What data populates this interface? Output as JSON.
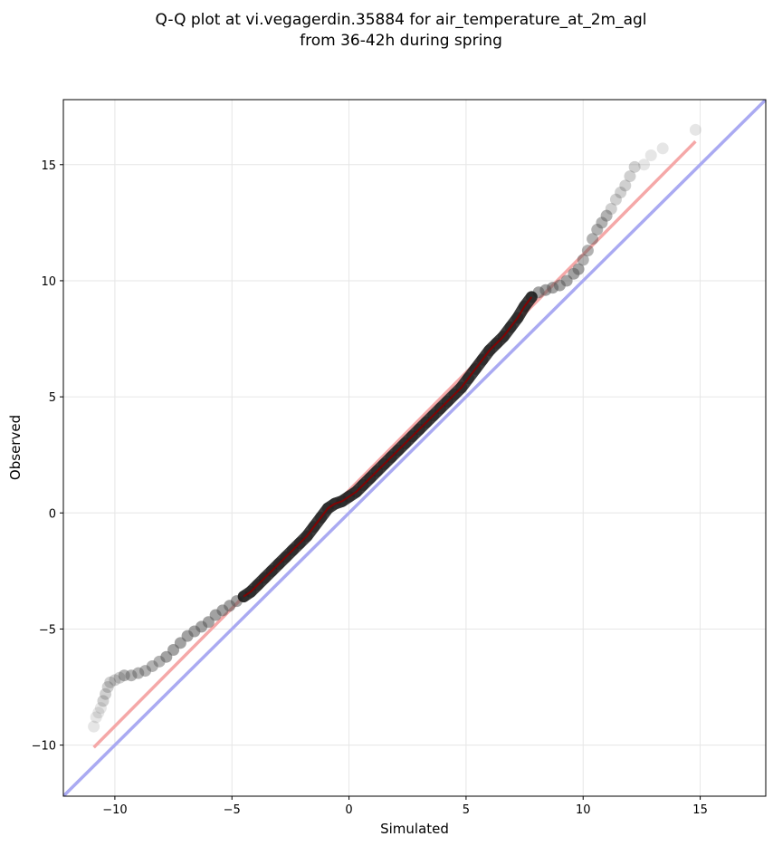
{
  "chart_data": {
    "type": "scatter",
    "title_lines": [
      "Q-Q plot at vi.vegagerdin.35884 for air_temperature_at_2m_agl",
      "from 36-42h during spring"
    ],
    "xlabel": "Simulated",
    "ylabel": "Observed",
    "xlim": [
      -12.2,
      17.8
    ],
    "ylim": [
      -12.2,
      17.8
    ],
    "xticks": [
      -10,
      -5,
      0,
      5,
      10,
      15
    ],
    "yticks": [
      -10,
      -5,
      0,
      5,
      10,
      15
    ],
    "xtick_labels": [
      "−10",
      "−5",
      "0",
      "5",
      "10",
      "15"
    ],
    "ytick_labels": [
      "−10",
      "−5",
      "0",
      "5",
      "10",
      "15"
    ],
    "grid": true,
    "colors": {
      "points": "#555555",
      "identity_line": "#aaaaf2",
      "fit_line": "#f5a8a8",
      "dense_trace": "#8b0000"
    },
    "series": [
      {
        "kind": "points",
        "x": [
          -10.9,
          -10.8,
          -10.7,
          -10.6,
          -10.5,
          -10.4,
          -10.3,
          -10.2,
          -10.0,
          -9.8,
          -9.6,
          -9.3,
          -9.0,
          -8.7,
          -8.4,
          -8.1,
          -7.8,
          -7.5,
          -7.2,
          -6.9,
          -6.6,
          -6.3,
          -6.0,
          -5.7,
          -5.4,
          -5.1,
          -4.8,
          -4.5,
          -4.2,
          -3.9,
          -3.6,
          -3.3,
          -3.0,
          -2.7,
          -2.4,
          -2.1,
          -1.8,
          -1.5,
          -1.2,
          -0.9,
          -0.6,
          -0.3,
          0.0,
          0.3,
          0.6,
          0.9,
          1.2,
          1.5,
          1.8,
          2.1,
          2.4,
          2.7,
          3.0,
          3.3,
          3.6,
          3.9,
          4.2,
          4.5,
          4.8,
          5.1,
          5.4,
          5.7,
          6.0,
          6.3,
          6.6,
          6.9,
          7.2,
          7.5,
          7.8,
          8.1,
          8.4,
          8.7,
          9.0,
          9.3,
          9.6,
          9.8,
          10.0,
          10.2,
          10.4,
          10.6,
          10.8,
          11.0,
          11.2,
          11.4,
          11.6,
          11.8,
          12.0,
          12.2,
          12.6,
          12.9,
          13.4,
          14.8
        ],
        "y": [
          -9.2,
          -8.8,
          -8.6,
          -8.4,
          -8.1,
          -7.8,
          -7.5,
          -7.3,
          -7.2,
          -7.1,
          -7.0,
          -7.0,
          -6.9,
          -6.8,
          -6.6,
          -6.4,
          -6.2,
          -5.9,
          -5.6,
          -5.3,
          -5.1,
          -4.9,
          -4.7,
          -4.4,
          -4.2,
          -4.0,
          -3.8,
          -3.6,
          -3.4,
          -3.1,
          -2.8,
          -2.5,
          -2.2,
          -1.9,
          -1.6,
          -1.3,
          -1.0,
          -0.6,
          -0.2,
          0.2,
          0.4,
          0.5,
          0.7,
          0.9,
          1.2,
          1.5,
          1.8,
          2.1,
          2.4,
          2.7,
          3.0,
          3.3,
          3.6,
          3.9,
          4.2,
          4.5,
          4.8,
          5.1,
          5.4,
          5.8,
          6.2,
          6.6,
          7.0,
          7.3,
          7.6,
          8.0,
          8.4,
          8.9,
          9.3,
          9.5,
          9.6,
          9.7,
          9.8,
          10.0,
          10.3,
          10.5,
          10.9,
          11.3,
          11.8,
          12.2,
          12.5,
          12.8,
          13.1,
          13.5,
          13.8,
          14.1,
          14.5,
          14.9,
          15.0,
          15.4,
          15.7,
          16.5
        ]
      },
      {
        "kind": "line",
        "name": "",
        "x": [
          -12.2,
          17.8
        ],
        "y": [
          -12.2,
          17.8
        ]
      },
      {
        "kind": "line",
        "name": "",
        "x": [
          -10.9,
          14.8
        ],
        "y": [
          -10.1,
          16.0
        ]
      }
    ]
  }
}
